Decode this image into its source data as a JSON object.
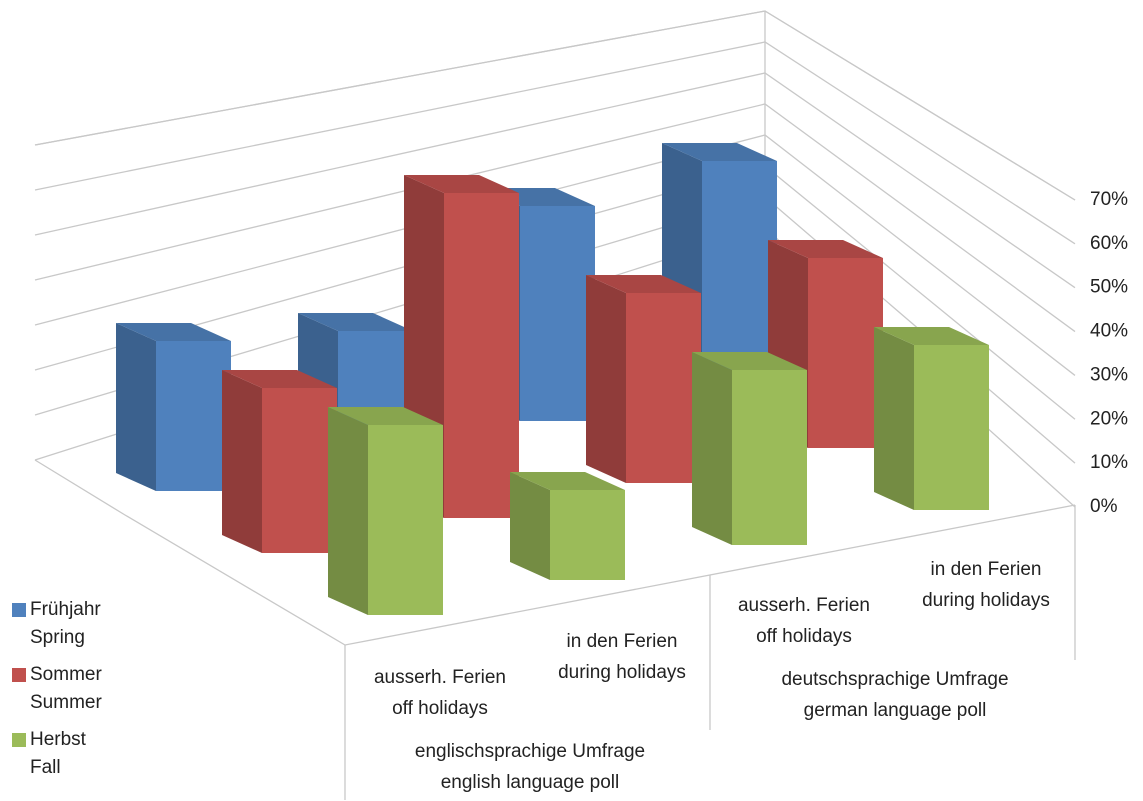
{
  "chart_data": {
    "type": "bar3d",
    "categories": [
      "ausserh. Ferien\noff holidays",
      "in den Ferien\nduring holidays",
      "ausserh. Ferien\noff holidays",
      "in den Ferien\nduring holidays"
    ],
    "groups": [
      {
        "label": "englischsprachige Umfrage\nenglish language poll",
        "categories": [
          0,
          1
        ]
      },
      {
        "label": "deutschsprachige Umfrage\ngerman language poll",
        "categories": [
          2,
          3
        ]
      }
    ],
    "series": [
      {
        "name": "Frühjahr\nSpring",
        "color": "#4f81bd",
        "values": [
          30,
          25,
          43,
          45
        ]
      },
      {
        "name": "Sommer\nSummer",
        "color": "#c0504d",
        "values": [
          33,
          65,
          38,
          38
        ]
      },
      {
        "name": "Herbst\nFall",
        "color": "#9bbb59",
        "values": [
          38,
          18,
          35,
          33
        ]
      }
    ],
    "ylim": [
      0,
      70
    ],
    "yticks": [
      {
        "value": 0,
        "label": "0%"
      },
      {
        "value": 10,
        "label": "10%"
      },
      {
        "value": 20,
        "label": "20%"
      },
      {
        "value": 30,
        "label": "30%"
      },
      {
        "value": 40,
        "label": "40%"
      },
      {
        "value": 50,
        "label": "50%"
      },
      {
        "value": 60,
        "label": "60%"
      },
      {
        "value": 70,
        "label": "70%"
      }
    ],
    "grid": true,
    "legend": "left"
  }
}
